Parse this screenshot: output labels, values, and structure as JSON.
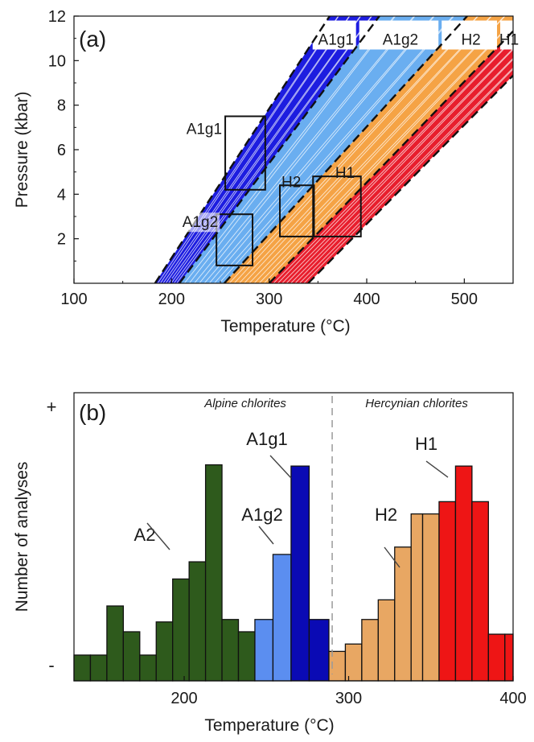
{
  "figure": {
    "panel_a_label": "(a)",
    "panel_b_label": "(b)"
  },
  "chart_data": [
    {
      "type": "area",
      "panel": "(a)",
      "title": "",
      "xlabel": "Temperature (°C)",
      "ylabel": "Pressure (kbar)",
      "xlim": [
        100,
        550
      ],
      "ylim": [
        0,
        12
      ],
      "xticks": [
        "100",
        "200",
        "300",
        "400",
        "500"
      ],
      "yticks": [
        "2",
        "4",
        "6",
        "8",
        "10",
        "12"
      ],
      "grid": false,
      "band_label_strip_pressure": 10.5,
      "bands": [
        {
          "name": "A1g1",
          "color": "#1d1de0",
          "line_color": "#ffffff",
          "T_at_P0": [
            183,
            208
          ],
          "T_at_P12": [
            362,
            413
          ]
        },
        {
          "name": "A1g2",
          "color": "#6aaef0",
          "line_color": "#ffffff",
          "T_at_P0": [
            208,
            254
          ],
          "T_at_P12": [
            413,
            503
          ]
        },
        {
          "name": "H2",
          "color": "#f5a345",
          "line_color": "#ffffff",
          "T_at_P0": [
            254,
            300
          ],
          "T_at_P12": [
            503,
            565
          ]
        },
        {
          "name": "H1",
          "color": "#e81e2d",
          "line_color": "#ffffff",
          "T_at_P0": [
            300,
            340
          ],
          "T_at_P12": [
            565,
            610
          ]
        }
      ],
      "dashed_boundaries": [
        {
          "T_at_P0": 183,
          "T_at_P12": 362
        },
        {
          "T_at_P0": 208,
          "T_at_P12": 413
        },
        {
          "T_at_P0": 254,
          "T_at_P12": 503
        },
        {
          "T_at_P0": 300,
          "T_at_P12": 565
        },
        {
          "T_at_P0": 340,
          "T_at_P12": 610
        }
      ],
      "boxes": [
        {
          "label": "A1g1",
          "T": [
            255,
            296
          ],
          "P": [
            4.2,
            7.5
          ]
        },
        {
          "label": "A1g2",
          "T": [
            246,
            283
          ],
          "P": [
            0.8,
            3.1
          ]
        },
        {
          "label": "H2",
          "T": [
            311,
            346
          ],
          "P": [
            2.1,
            4.4
          ]
        },
        {
          "label": "H1",
          "T": [
            345,
            394
          ],
          "P": [
            2.1,
            4.8
          ]
        }
      ]
    },
    {
      "type": "bar",
      "panel": "(b)",
      "title": "",
      "xlabel": "Temperature (°C)",
      "ylabel": "Number of analyses",
      "xlim": [
        133,
        400
      ],
      "xticks": [
        "200",
        "300",
        "400"
      ],
      "ymax_label": "+",
      "ymin_label": "-",
      "ylim": [
        0,
        1
      ],
      "divider_T": 290,
      "groups": [
        {
          "text": "Alpine chlorites"
        },
        {
          "text": "Hercynian chlorites"
        }
      ],
      "series": [
        {
          "name": "A2",
          "color": "#2e5a1c",
          "bins_start": [
            133,
            143,
            153,
            163,
            173,
            183,
            193,
            203,
            213,
            223,
            233
          ],
          "values": [
            0.105,
            0.105,
            0.305,
            0.2,
            0.105,
            0.24,
            0.415,
            0.485,
            0.88,
            0.25,
            0.2
          ]
        },
        {
          "name": "A1g2",
          "color": "#5b8ef0",
          "bins_start": [
            243,
            254,
            265
          ],
          "values": [
            0.25,
            0.515,
            0.19
          ]
        },
        {
          "name": "A1g1",
          "color": "#0a0ab4",
          "bins_start": [
            265,
            276
          ],
          "values": [
            0.875,
            0.25
          ]
        },
        {
          "name": "H2",
          "color": "#e8a763",
          "bins_start": [
            288,
            298,
            308,
            318,
            328,
            338,
            345
          ],
          "values": [
            0.12,
            0.15,
            0.25,
            0.33,
            0.545,
            0.68,
            0.68
          ]
        },
        {
          "name": "H1",
          "color": "#ee1515",
          "bins_start": [
            355,
            365,
            375,
            385,
            395
          ],
          "values": [
            0.73,
            0.875,
            0.73,
            0.19,
            0.19
          ]
        }
      ],
      "annotations": [
        {
          "text": "A2"
        },
        {
          "text": "A1g2"
        },
        {
          "text": "A1g1"
        },
        {
          "text": "H2"
        },
        {
          "text": "H1"
        }
      ]
    }
  ]
}
